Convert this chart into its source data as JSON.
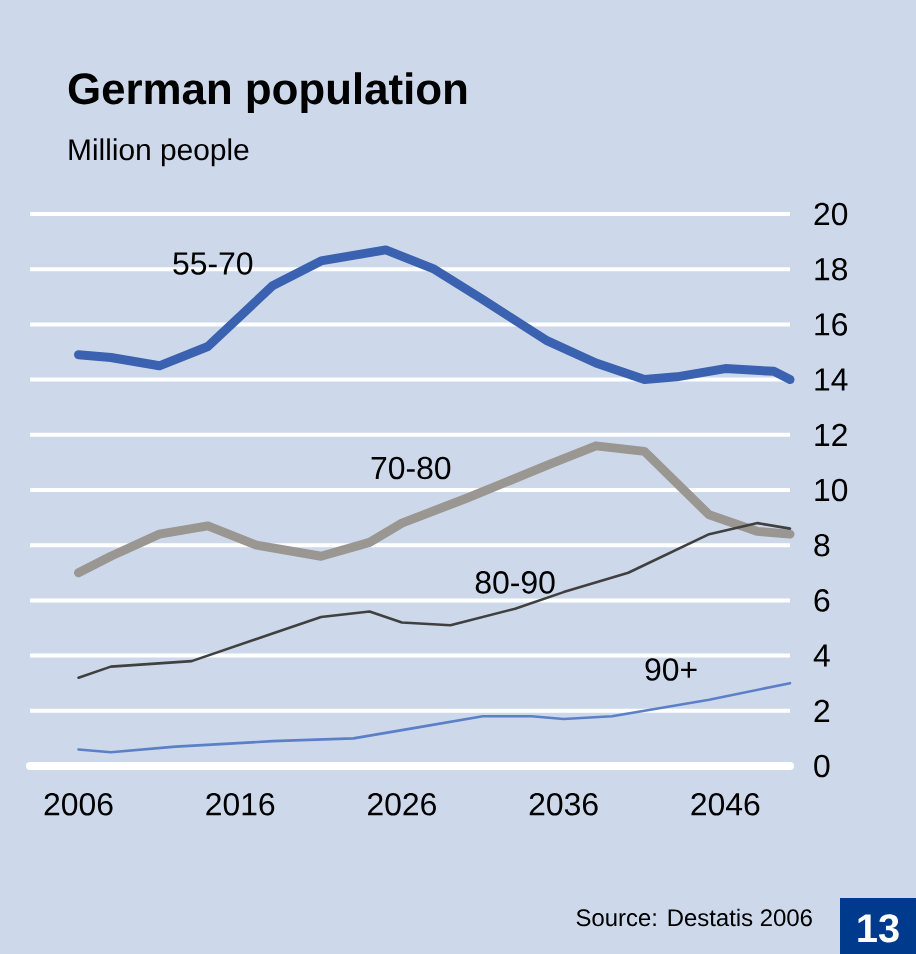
{
  "chart_data": {
    "type": "line",
    "title": "German population",
    "subtitle": "Million people",
    "annotations": [
      "Source: Destatis 2006",
      "13"
    ],
    "xlim": [
      2003,
      2050
    ],
    "xticks": [
      2006,
      2016,
      2026,
      2036,
      2046
    ],
    "ylim": [
      0,
      20
    ],
    "yticks": [
      0,
      2,
      4,
      6,
      8,
      10,
      12,
      14,
      16,
      18,
      20
    ],
    "grid": "y",
    "series": [
      {
        "name": "55-70",
        "color": "#3a62b0",
        "x": [
          2006,
          2008,
          2011,
          2014,
          2018,
          2021,
          2025,
          2028,
          2031,
          2035,
          2038,
          2041,
          2043,
          2046,
          2049,
          2050
        ],
        "values": [
          14.9,
          14.8,
          14.5,
          15.2,
          17.4,
          18.3,
          18.7,
          18.0,
          16.9,
          15.4,
          14.6,
          14.0,
          14.1,
          14.4,
          14.3,
          14.0
        ]
      },
      {
        "name": "70-80",
        "color": "#9a9692",
        "x": [
          2006,
          2008,
          2011,
          2014,
          2017,
          2021,
          2024,
          2026,
          2030,
          2035,
          2038,
          2041,
          2045,
          2048,
          2050
        ],
        "values": [
          7.0,
          7.6,
          8.4,
          8.7,
          8.0,
          7.6,
          8.1,
          8.8,
          9.7,
          10.9,
          11.6,
          11.4,
          9.1,
          8.5,
          8.4
        ]
      },
      {
        "name": "80-90",
        "color": "#404040",
        "x": [
          2006,
          2008,
          2013,
          2018,
          2021,
          2024,
          2026,
          2029,
          2033,
          2036,
          2040,
          2045,
          2048,
          2050
        ],
        "values": [
          3.2,
          3.6,
          3.8,
          4.8,
          5.4,
          5.6,
          5.2,
          5.1,
          5.7,
          6.3,
          7.0,
          8.4,
          8.8,
          8.6
        ]
      },
      {
        "name": "90+",
        "color": "#5b80c8",
        "x": [
          2006,
          2008,
          2012,
          2018,
          2023,
          2027,
          2031,
          2034,
          2036,
          2039,
          2045,
          2050
        ],
        "values": [
          0.6,
          0.5,
          0.7,
          0.9,
          1.0,
          1.4,
          1.8,
          1.8,
          1.7,
          1.8,
          2.4,
          3.0
        ]
      }
    ]
  }
}
